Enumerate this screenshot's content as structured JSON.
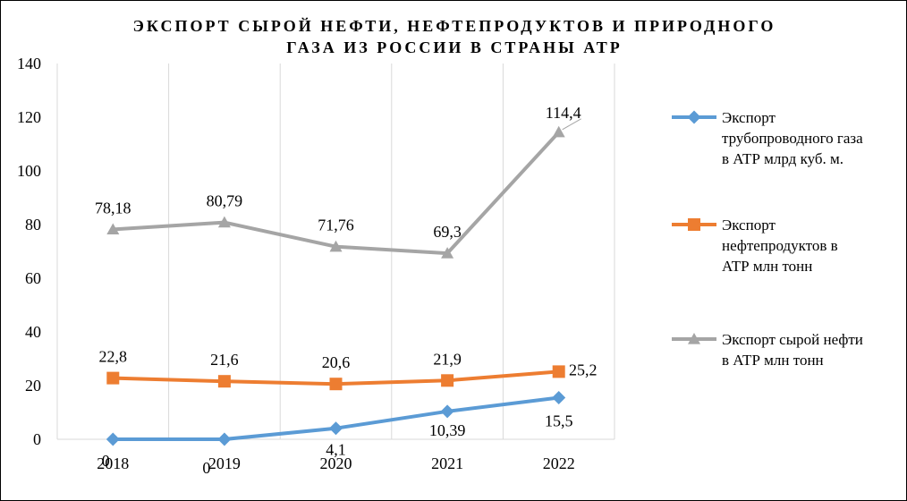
{
  "chart_data": {
    "type": "line",
    "title_lines": [
      "ЭКСПОРТ СЫРОЙ НЕФТИ, НЕФТЕПРОДУКТОВ И ПРИРОДНОГО",
      "ГАЗА ИЗ РОССИИ В СТРАНЫ АТР"
    ],
    "categories": [
      "2018",
      "2019",
      "2020",
      "2021",
      "2022"
    ],
    "ylim": [
      0,
      140
    ],
    "yticks": [
      "0",
      "20",
      "40",
      "60",
      "80",
      "100",
      "120",
      "140"
    ],
    "grid": "vertical",
    "legend_position": "right",
    "series": [
      {
        "name_lines": [
          "Экспорт",
          "трубопроводного газа",
          "в АТР млрд куб. м."
        ],
        "values": [
          0,
          0,
          4.1,
          10.39,
          15.5
        ],
        "labels": [
          "0",
          "0",
          "4,1",
          "10,39",
          "15,5"
        ],
        "color": "#5B9BD5",
        "marker": "diamond"
      },
      {
        "name_lines": [
          "Экспорт",
          "нефтепродуктов в",
          "АТР млн тонн"
        ],
        "values": [
          22.8,
          21.6,
          20.6,
          21.9,
          25.2
        ],
        "labels": [
          "22,8",
          "21,6",
          "20,6",
          "21,9",
          "25,2"
        ],
        "color": "#ED7D31",
        "marker": "square"
      },
      {
        "name_lines": [
          "Экспорт сырой нефти",
          "в АТР млн тонн"
        ],
        "values": [
          78.18,
          80.79,
          71.76,
          69.3,
          114.4
        ],
        "labels": [
          "78,18",
          "80,79",
          "71,76",
          "69,3",
          "114,4"
        ],
        "color": "#A5A5A5",
        "marker": "triangle"
      }
    ]
  }
}
